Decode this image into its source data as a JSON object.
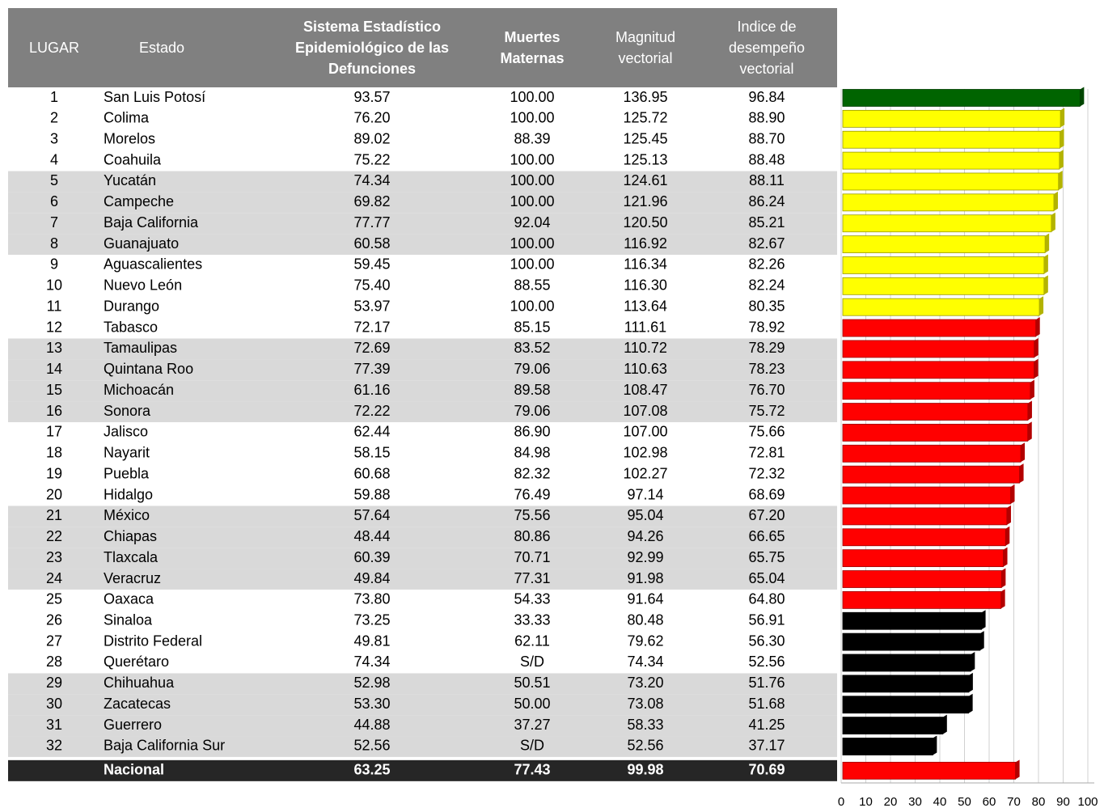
{
  "table": {
    "headers": [
      [
        "LUGAR"
      ],
      [
        "Estado"
      ],
      [
        "Sistema Estadístico",
        "Epidemiológico de las",
        "Defunciones"
      ],
      [
        "Muertes",
        "Maternas"
      ],
      [
        "Magnitud",
        "vectorial"
      ],
      [
        "Indice de",
        "desempeño",
        "vectorial"
      ]
    ],
    "rows": [
      [
        "1",
        "San Luis Potosí",
        "93.57",
        "100.00",
        "136.95",
        "96.84"
      ],
      [
        "2",
        "Colima",
        "76.20",
        "100.00",
        "125.72",
        "88.90"
      ],
      [
        "3",
        "Morelos",
        "89.02",
        "88.39",
        "125.45",
        "88.70"
      ],
      [
        "4",
        "Coahuila",
        "75.22",
        "100.00",
        "125.13",
        "88.48"
      ],
      [
        "5",
        "Yucatán",
        "74.34",
        "100.00",
        "124.61",
        "88.11"
      ],
      [
        "6",
        "Campeche",
        "69.82",
        "100.00",
        "121.96",
        "86.24"
      ],
      [
        "7",
        "Baja California",
        "77.77",
        "92.04",
        "120.50",
        "85.21"
      ],
      [
        "8",
        "Guanajuato",
        "60.58",
        "100.00",
        "116.92",
        "82.67"
      ],
      [
        "9",
        "Aguascalientes",
        "59.45",
        "100.00",
        "116.34",
        "82.26"
      ],
      [
        "10",
        "Nuevo León",
        "75.40",
        "88.55",
        "116.30",
        "82.24"
      ],
      [
        "11",
        "Durango",
        "53.97",
        "100.00",
        "113.64",
        "80.35"
      ],
      [
        "12",
        "Tabasco",
        "72.17",
        "85.15",
        "111.61",
        "78.92"
      ],
      [
        "13",
        "Tamaulipas",
        "72.69",
        "83.52",
        "110.72",
        "78.29"
      ],
      [
        "14",
        "Quintana Roo",
        "77.39",
        "79.06",
        "110.63",
        "78.23"
      ],
      [
        "15",
        "Michoacán",
        "61.16",
        "89.58",
        "108.47",
        "76.70"
      ],
      [
        "16",
        "Sonora",
        "72.22",
        "79.06",
        "107.08",
        "75.72"
      ],
      [
        "17",
        "Jalisco",
        "62.44",
        "86.90",
        "107.00",
        "75.66"
      ],
      [
        "18",
        "Nayarit",
        "58.15",
        "84.98",
        "102.98",
        "72.81"
      ],
      [
        "19",
        "Puebla",
        "60.68",
        "82.32",
        "102.27",
        "72.32"
      ],
      [
        "20",
        "Hidalgo",
        "59.88",
        "76.49",
        "97.14",
        "68.69"
      ],
      [
        "21",
        "México",
        "57.64",
        "75.56",
        "95.04",
        "67.20"
      ],
      [
        "22",
        "Chiapas",
        "48.44",
        "80.86",
        "94.26",
        "66.65"
      ],
      [
        "23",
        "Tlaxcala",
        "60.39",
        "70.71",
        "92.99",
        "65.75"
      ],
      [
        "24",
        "Veracruz",
        "49.84",
        "77.31",
        "91.98",
        "65.04"
      ],
      [
        "25",
        "Oaxaca",
        "73.80",
        "54.33",
        "91.64",
        "64.80"
      ],
      [
        "26",
        "Sinaloa",
        "73.25",
        "33.33",
        "80.48",
        "56.91"
      ],
      [
        "27",
        "Distrito Federal",
        "49.81",
        "62.11",
        "79.62",
        "56.30"
      ],
      [
        "28",
        "Querétaro",
        "74.34",
        "S/D",
        "74.34",
        "52.56"
      ],
      [
        "29",
        "Chihuahua",
        "52.98",
        "50.51",
        "73.20",
        "51.76"
      ],
      [
        "30",
        "Zacatecas",
        "53.30",
        "50.00",
        "73.08",
        "51.68"
      ],
      [
        "31",
        "Guerrero",
        "44.88",
        "37.27",
        "58.33",
        "41.25"
      ],
      [
        "32",
        "Baja California Sur",
        "52.56",
        "S/D",
        "52.56",
        "37.17"
      ]
    ],
    "total": [
      "Nacional",
      "63.25",
      "77.43",
      "99.98",
      "70.69"
    ]
  },
  "chart": {
    "type": "bar",
    "xlim": [
      0,
      100
    ],
    "xticks": [
      0,
      10,
      20,
      30,
      40,
      50,
      60,
      70,
      80,
      90,
      100
    ],
    "grid": true,
    "bar_colors": [
      "#006400",
      "#ffff00",
      "#ffff00",
      "#ffff00",
      "#ffff00",
      "#ffff00",
      "#ffff00",
      "#ffff00",
      "#ffff00",
      "#ffff00",
      "#ffff00",
      "#ff0000",
      "#ff0000",
      "#ff0000",
      "#ff0000",
      "#ff0000",
      "#ff0000",
      "#ff0000",
      "#ff0000",
      "#ff0000",
      "#ff0000",
      "#ff0000",
      "#ff0000",
      "#ff0000",
      "#ff0000",
      "#000000",
      "#000000",
      "#000000",
      "#000000",
      "#000000",
      "#000000",
      "#000000",
      "#ff0000"
    ]
  }
}
